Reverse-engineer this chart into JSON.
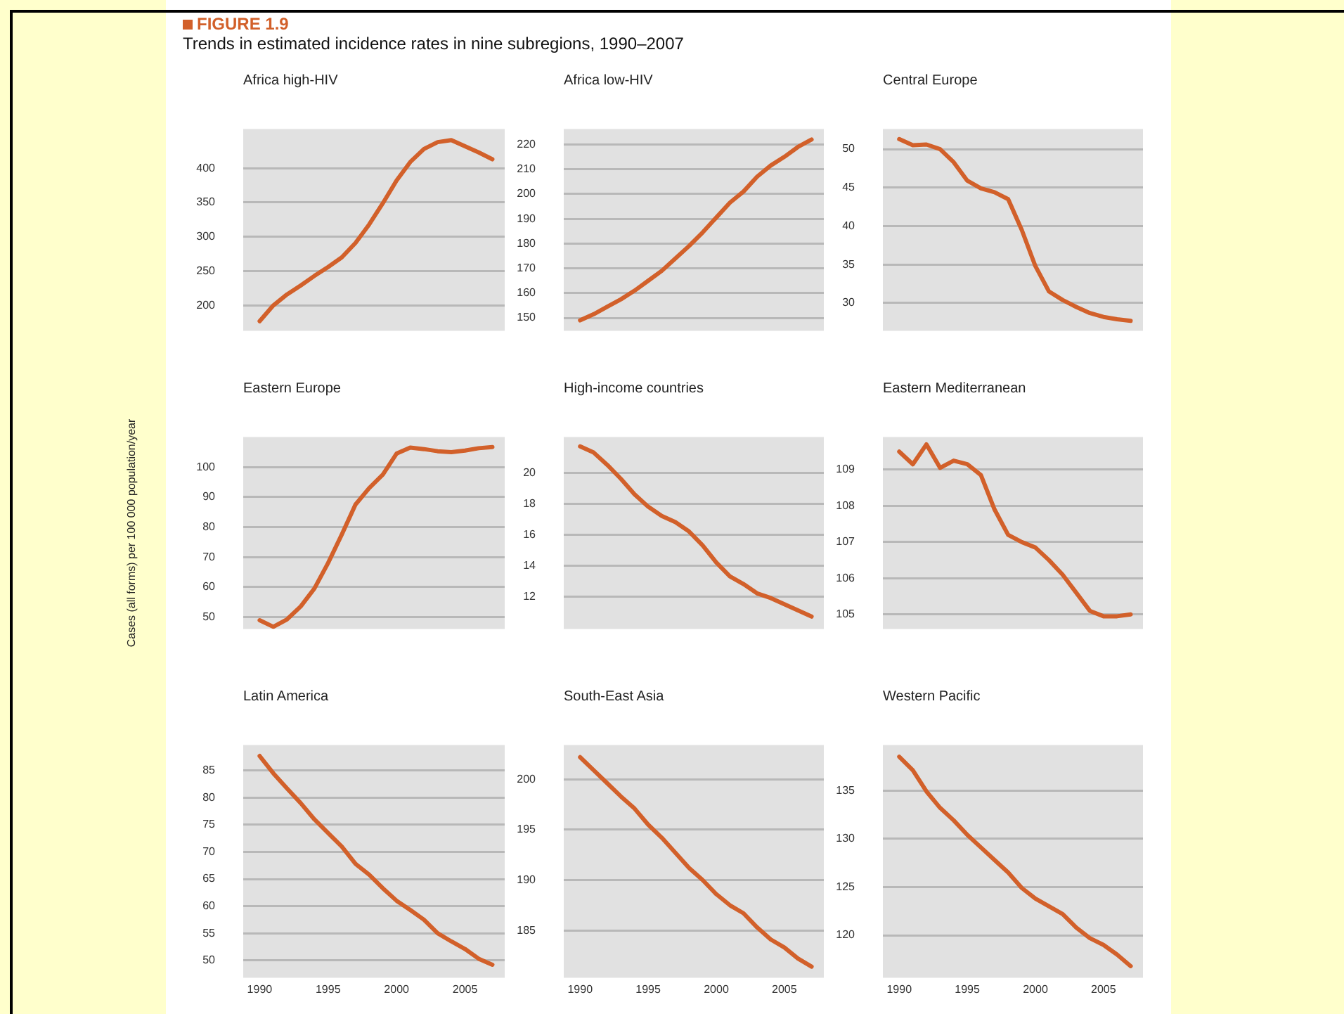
{
  "chart_data": [
    {
      "type": "other",
      "title": "FIGURE 1.9",
      "subtitle": "Trends in estimated incidence rates in nine subregions, 1990–2007"
    },
    {
      "type": "line",
      "title": "Africa high-HIV",
      "x": [
        1990,
        1991,
        1992,
        1993,
        1994,
        1995,
        1996,
        1997,
        1998,
        1999,
        2000,
        2001,
        2002,
        2003,
        2004,
        2005,
        2006,
        2007
      ],
      "series": [
        {
          "color": "#d2602a",
          "values": [
            177,
            200,
            216,
            229,
            243,
            256,
            270,
            291,
            318,
            349,
            382,
            409,
            428,
            438,
            441,
            432,
            423,
            413
          ]
        }
      ],
      "xlim": [
        1988.8,
        2007.9
      ],
      "ylim": [
        163,
        457
      ],
      "yticks": [
        200,
        250,
        300,
        350,
        400
      ],
      "grid": "y",
      "tick_labels": "y",
      "marker": "none"
    },
    {
      "type": "line",
      "title": "Africa low-HIV",
      "x": [
        1990,
        1991,
        1992,
        1993,
        1994,
        1995,
        1996,
        1997,
        1998,
        1999,
        2000,
        2001,
        2002,
        2003,
        2004,
        2005,
        2006,
        2007
      ],
      "series": [
        {
          "color": "#d2602a",
          "values": [
            149,
            151.5,
            154.5,
            157.5,
            161,
            165,
            169,
            174,
            179,
            184.5,
            190.5,
            196.5,
            201,
            207,
            211.5,
            215,
            219,
            222
          ]
        }
      ],
      "xlim": [
        1988.8,
        2007.9
      ],
      "ylim": [
        144.8,
        226.2
      ],
      "yticks": [
        150,
        160,
        170,
        180,
        190,
        200,
        210,
        220
      ],
      "grid": "y",
      "tick_labels": "y",
      "marker": "none"
    },
    {
      "type": "line",
      "title": "Central Europe",
      "x": [
        1990,
        1991,
        1992,
        1993,
        1994,
        1995,
        1996,
        1997,
        1998,
        1999,
        2000,
        2001,
        2002,
        2003,
        2004,
        2005,
        2006,
        2007
      ],
      "series": [
        {
          "color": "#d2602a",
          "values": [
            51.3,
            50.5,
            50.6,
            50,
            48.3,
            45.9,
            44.9,
            44.4,
            43.5,
            39.5,
            34.8,
            31.5,
            30.4,
            29.5,
            28.7,
            28.2,
            27.9,
            27.7
          ]
        }
      ],
      "xlim": [
        1988.8,
        2007.9
      ],
      "ylim": [
        26.4,
        52.6
      ],
      "yticks": [
        30,
        35,
        40,
        45,
        50
      ],
      "grid": "y",
      "tick_labels": "y",
      "marker": "none"
    },
    {
      "type": "line",
      "title": "Eastern Europe",
      "ylabel": "Cases (all forms) per 100 000 population/year",
      "x": [
        1990,
        1991,
        1992,
        1993,
        1994,
        1995,
        1996,
        1997,
        1998,
        1999,
        2000,
        2001,
        2002,
        2003,
        2004,
        2005,
        2006,
        2007
      ],
      "series": [
        {
          "color": "#d2602a",
          "values": [
            48.9,
            46.7,
            49.2,
            53.5,
            59.5,
            68,
            77.5,
            87.5,
            93,
            97.5,
            104.5,
            106.5,
            106,
            105.3,
            105,
            105.5,
            106.3,
            106.7
          ]
        }
      ],
      "xlim": [
        1988.8,
        2007.9
      ],
      "ylim": [
        46,
        110
      ],
      "yticks": [
        50,
        60,
        70,
        80,
        90,
        100
      ],
      "grid": "y",
      "tick_labels": "y",
      "marker": "none"
    },
    {
      "type": "line",
      "title": "High-income countries",
      "x": [
        1990,
        1991,
        1992,
        1993,
        1994,
        1995,
        1996,
        1997,
        1998,
        1999,
        2000,
        2001,
        2002,
        2003,
        2004,
        2005,
        2006,
        2007
      ],
      "series": [
        {
          "color": "#d2602a",
          "values": [
            21.7,
            21.3,
            20.5,
            19.6,
            18.6,
            17.8,
            17.2,
            16.8,
            16.2,
            15.3,
            14.2,
            13.3,
            12.8,
            12.2,
            11.9,
            11.5,
            11.1,
            10.7
          ]
        }
      ],
      "xlim": [
        1988.8,
        2007.9
      ],
      "ylim": [
        9.9,
        22.3
      ],
      "yticks": [
        12,
        14,
        16,
        18,
        20
      ],
      "grid": "y",
      "tick_labels": "y",
      "marker": "none"
    },
    {
      "type": "line",
      "title": "Eastern Mediterranean",
      "x": [
        1990,
        1991,
        1992,
        1993,
        1994,
        1995,
        1996,
        1997,
        1998,
        1999,
        2000,
        2001,
        2002,
        2003,
        2004,
        2005,
        2006,
        2007
      ],
      "series": [
        {
          "color": "#d2602a",
          "values": [
            109.5,
            109.15,
            109.7,
            109.05,
            109.25,
            109.15,
            108.85,
            107.9,
            107.2,
            107,
            106.85,
            106.5,
            106.1,
            105.6,
            105.1,
            104.95,
            104.95,
            105
          ]
        }
      ],
      "xlim": [
        1988.8,
        2007.9
      ],
      "ylim": [
        104.6,
        109.9
      ],
      "yticks": [
        105,
        106,
        107,
        108,
        109
      ],
      "grid": "y",
      "tick_labels": "y",
      "marker": "none"
    },
    {
      "type": "line",
      "title": "Latin America",
      "x": [
        1990,
        1991,
        1992,
        1993,
        1994,
        1995,
        1996,
        1997,
        1998,
        1999,
        2000,
        2001,
        2002,
        2003,
        2004,
        2005,
        2006,
        2007
      ],
      "series": [
        {
          "color": "#d2602a",
          "values": [
            87.7,
            84.5,
            81.7,
            79,
            76,
            73.5,
            71,
            67.8,
            65.8,
            63.3,
            61,
            59.3,
            57.5,
            55,
            53.5,
            52.1,
            50.3,
            49.2
          ]
        }
      ],
      "xlim": [
        1988.8,
        2007.9
      ],
      "ylim": [
        46.8,
        89.7
      ],
      "xticks": [
        1990,
        1995,
        2000,
        2005
      ],
      "yticks": [
        50,
        55,
        60,
        65,
        70,
        75,
        80,
        85
      ],
      "grid": "y",
      "marker": "none"
    },
    {
      "type": "line",
      "title": "South-East Asia",
      "x": [
        1990,
        1991,
        1992,
        1993,
        1994,
        1995,
        1996,
        1997,
        1998,
        1999,
        2000,
        2001,
        2002,
        2003,
        2004,
        2005,
        2006,
        2007
      ],
      "series": [
        {
          "color": "#d2602a",
          "values": [
            202.2,
            200.9,
            199.6,
            198.3,
            197.1,
            195.5,
            194.2,
            192.7,
            191.2,
            190,
            188.6,
            187.5,
            186.7,
            185.3,
            184.1,
            183.3,
            182.2,
            181.4
          ]
        }
      ],
      "xlim": [
        1988.8,
        2007.9
      ],
      "ylim": [
        180.3,
        203.4
      ],
      "xticks": [
        1990,
        1995,
        2000,
        2005
      ],
      "yticks": [
        185,
        190,
        195,
        200
      ],
      "grid": "y",
      "marker": "none"
    },
    {
      "type": "line",
      "title": "Western Pacific",
      "x": [
        1990,
        1991,
        1992,
        1993,
        1994,
        1995,
        1996,
        1997,
        1998,
        1999,
        2000,
        2001,
        2002,
        2003,
        2004,
        2005,
        2006,
        2007
      ],
      "series": [
        {
          "color": "#d2602a",
          "values": [
            138.5,
            137.1,
            134.9,
            133.2,
            131.9,
            130.4,
            129.1,
            127.8,
            126.5,
            124.9,
            123.8,
            123,
            122.2,
            120.8,
            119.7,
            119,
            118,
            116.8
          ]
        }
      ],
      "xlim": [
        1988.8,
        2007.9
      ],
      "ylim": [
        115.6,
        139.7
      ],
      "xticks": [
        1990,
        1995,
        2000,
        2005
      ],
      "yticks": [
        120,
        125,
        130,
        135
      ],
      "grid": "y",
      "marker": "none"
    }
  ]
}
